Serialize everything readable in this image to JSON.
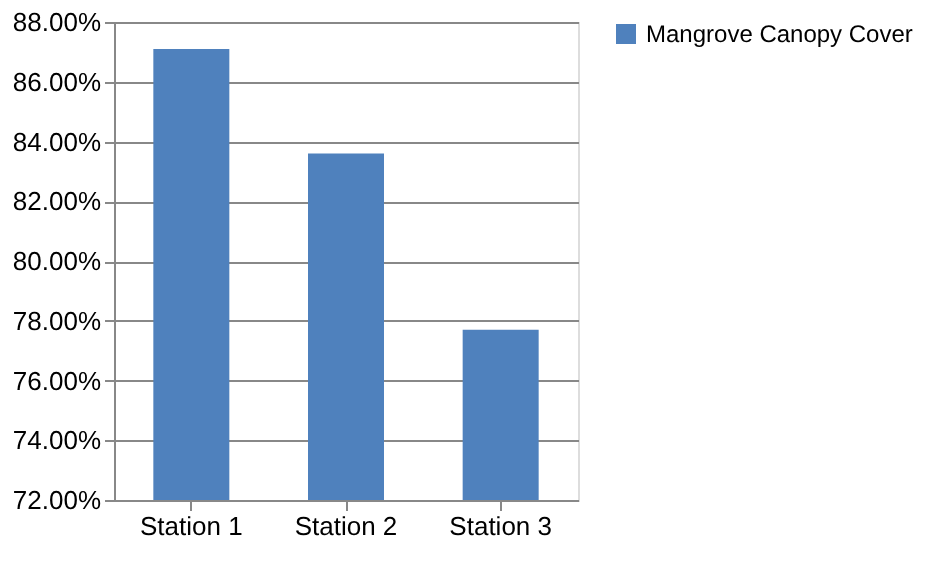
{
  "chart_data": {
    "type": "bar",
    "categories": [
      "Station 1",
      "Station 2",
      "Station 3"
    ],
    "series": [
      {
        "name": "Mangrove Canopy Cover",
        "color": "#4f81bd",
        "values": [
          87.1,
          83.6,
          77.7
        ]
      }
    ],
    "ylim": [
      72,
      88
    ],
    "yticks": [
      {
        "value": 72,
        "label": "72.00%"
      },
      {
        "value": 74,
        "label": "74.00%"
      },
      {
        "value": 76,
        "label": "76.00%"
      },
      {
        "value": 78,
        "label": "78.00%"
      },
      {
        "value": 80,
        "label": "80.00%"
      },
      {
        "value": 82,
        "label": "82.00%"
      },
      {
        "value": 84,
        "label": "84.00%"
      },
      {
        "value": 86,
        "label": "86.00%"
      },
      {
        "value": 88,
        "label": "88.00%"
      }
    ],
    "grid": "y",
    "legend": "right"
  }
}
